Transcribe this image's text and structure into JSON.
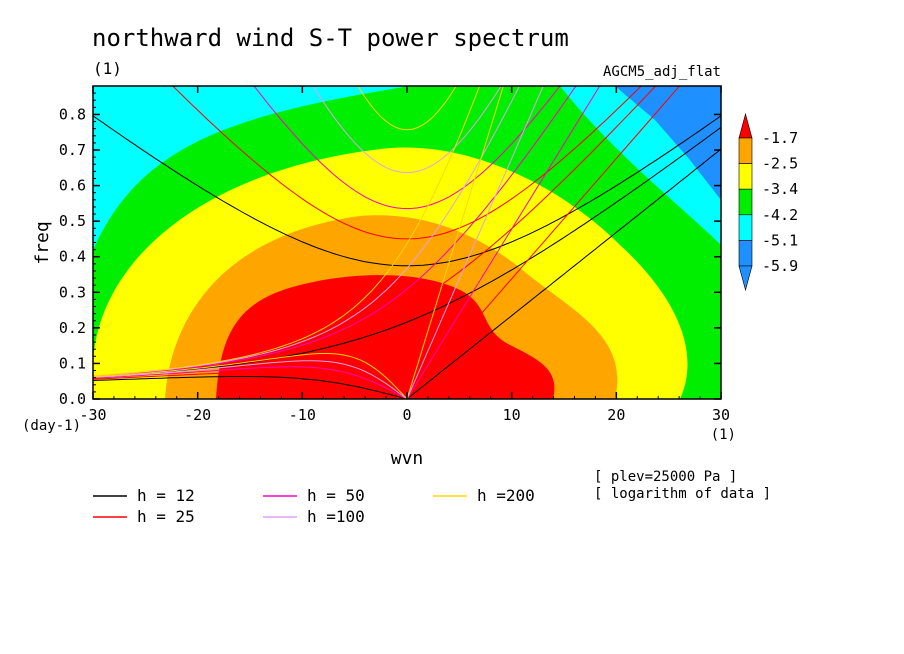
{
  "chart_data": {
    "type": "heatmap",
    "title": "northward wind S-T power spectrum",
    "x_unit_top": "(1)",
    "model_label": "AGCM5_adj_flat",
    "xlabel": "wvn",
    "ylabel": "freq",
    "y_unit": "(day-1)",
    "x_unit": "(1)",
    "xlim": [
      -30,
      30
    ],
    "ylim": [
      0,
      0.88
    ],
    "xticks": [
      -30,
      -20,
      -10,
      0,
      10,
      20,
      30
    ],
    "xtick_labels": [
      "-30",
      "-20",
      "-10",
      "0",
      "10",
      "20",
      "30"
    ],
    "yticks": [
      0,
      0.1,
      0.2,
      0.3,
      0.4,
      0.5,
      0.6,
      0.7,
      0.8
    ],
    "ytick_labels": [
      "0.0",
      "0.1",
      "0.2",
      "0.3",
      "0.4",
      "0.5",
      "0.6",
      "0.7",
      "0.8"
    ],
    "notes": [
      "[ plev=25000 Pa ]",
      "[ logarithm of data ]"
    ],
    "colorbar": {
      "levels": [
        -1.7,
        -2.5,
        -3.4,
        -4.2,
        -5.1,
        -5.9
      ],
      "level_labels": [
        "-1.7",
        "-2.5",
        "-3.4",
        "-4.2",
        "-5.1",
        "-5.9"
      ],
      "colors": [
        "#ff0000",
        "#ffa500",
        "#ffff00",
        "#00ee00",
        "#00ffff",
        "#1e90ff"
      ],
      "upper_extend_color": "#ff0000",
      "lower_extend_color": "#1e90ff"
    },
    "dispersion_curves": [
      {
        "name": "h = 12",
        "label": "h = 12",
        "h": 12,
        "color": "#000000"
      },
      {
        "name": "h = 25",
        "label": "h = 25",
        "h": 25,
        "color": "#ff0000"
      },
      {
        "name": "h = 50",
        "label": "h = 50",
        "h": 50,
        "color": "#ff00c0"
      },
      {
        "name": "h =100",
        "label": "h =100",
        "h": 100,
        "color": "#e0a0f0"
      },
      {
        "name": "h =200",
        "label": "h =200",
        "h": 200,
        "color": "#ffd700"
      }
    ]
  }
}
